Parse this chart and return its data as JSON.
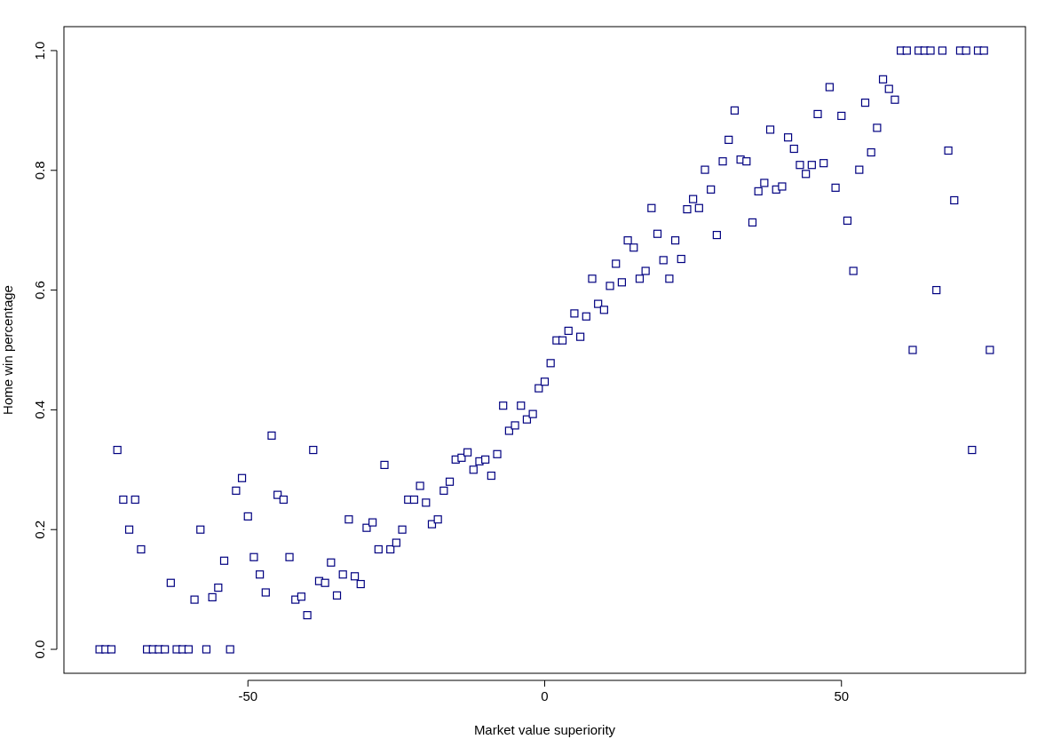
{
  "chart_data": {
    "type": "scatter",
    "xlabel": "Market value superiority",
    "ylabel": "Home win percentage",
    "xlim": [
      -81,
      81
    ],
    "ylim": [
      -0.04,
      1.04
    ],
    "xticks": [
      -50,
      0,
      50
    ],
    "yticks": [
      {
        "value": 0,
        "label": "0.0"
      },
      {
        "value": 0.2,
        "label": "0.2"
      },
      {
        "value": 0.4,
        "label": "0.4"
      },
      {
        "value": 0.6,
        "label": "0.6"
      },
      {
        "value": 0.8,
        "label": "0.8"
      },
      {
        "value": 1,
        "label": "1.0"
      }
    ],
    "marker": "square",
    "series": [
      {
        "color": "#000080",
        "x": [
          -75,
          -74,
          -73,
          -72,
          -71,
          -70,
          -69,
          -68,
          -67,
          -66,
          -65,
          -64,
          -63,
          -62,
          -61,
          -60,
          -59,
          -58,
          -57,
          -56,
          -55,
          -54,
          -53,
          -52,
          -51,
          -50,
          -49,
          -48,
          -47,
          -46,
          -45,
          -44,
          -43,
          -42,
          -41,
          -40,
          -39,
          -38,
          -37,
          -36,
          -35,
          -34,
          -33,
          -32,
          -31,
          -30,
          -29,
          -28,
          -27,
          -26,
          -25,
          -24,
          -23,
          -22,
          -21,
          -20,
          -19,
          -18,
          -17,
          -16,
          -15,
          -14,
          -13,
          -12,
          -11,
          -10,
          -9,
          -8,
          -7,
          -6,
          -5,
          -4,
          -3,
          -2,
          -1,
          0,
          1,
          2,
          3,
          4,
          5,
          6,
          7,
          8,
          9,
          10,
          11,
          12,
          13,
          14,
          15,
          16,
          17,
          18,
          19,
          20,
          21,
          22,
          23,
          24,
          25,
          26,
          27,
          28,
          29,
          30,
          31,
          32,
          33,
          34,
          35,
          36,
          37,
          38,
          39,
          40,
          41,
          42,
          43,
          44,
          45,
          46,
          47,
          48,
          49,
          50,
          51,
          52,
          53,
          54,
          55,
          56,
          57,
          58,
          59,
          60,
          61,
          62,
          63,
          64,
          65,
          66,
          67,
          68,
          69,
          70,
          71,
          72,
          73,
          74,
          75
        ],
        "values": [
          0,
          0,
          0,
          0.333,
          0.25,
          0.2,
          0.25,
          0.167,
          0,
          0,
          0,
          0,
          0.111,
          0,
          0,
          0,
          0.083,
          0.2,
          0,
          0.087,
          0.103,
          0.148,
          0,
          0.265,
          0.286,
          0.222,
          0.154,
          0.125,
          0.095,
          0.357,
          0.258,
          0.25,
          0.154,
          0.083,
          0.088,
          0.057,
          0.333,
          0.114,
          0.111,
          0.145,
          0.09,
          0.125,
          0.217,
          0.122,
          0.109,
          0.203,
          0.212,
          0.167,
          0.308,
          0.167,
          0.178,
          0.2,
          0.25,
          0.25,
          0.273,
          0.245,
          0.209,
          0.217,
          0.265,
          0.28,
          0.317,
          0.32,
          0.329,
          0.3,
          0.314,
          0.317,
          0.29,
          0.326,
          0.407,
          0.365,
          0.374,
          0.407,
          0.384,
          0.393,
          0.436,
          0.447,
          0.478,
          0.516,
          0.516,
          0.532,
          0.561,
          0.522,
          0.556,
          0.619,
          0.577,
          0.567,
          0.607,
          0.644,
          0.613,
          0.683,
          0.671,
          0.619,
          0.632,
          0.737,
          0.694,
          0.65,
          0.619,
          0.683,
          0.652,
          0.735,
          0.752,
          0.737,
          0.801,
          0.768,
          0.692,
          0.815,
          0.851,
          0.9,
          0.818,
          0.815,
          0.713,
          0.765,
          0.779,
          0.868,
          0.768,
          0.773,
          0.855,
          0.836,
          0.809,
          0.794,
          0.809,
          0.894,
          0.812,
          0.939,
          0.771,
          0.891,
          0.716,
          0.632,
          0.801,
          0.913,
          0.83,
          0.871,
          0.952,
          0.936,
          0.918,
          1,
          1,
          0.5,
          1,
          1,
          1,
          0.6,
          1,
          0.833,
          0.75,
          1,
          1,
          0.333,
          1,
          1,
          0.5
        ]
      }
    ]
  }
}
